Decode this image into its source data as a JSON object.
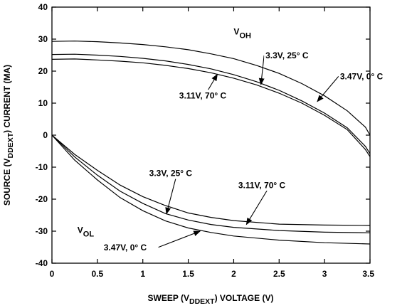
{
  "chart_data": {
    "type": "line",
    "title": "",
    "xlabel": {
      "pre": "SWEEP (V",
      "sub": "DDEXT",
      "post": ") VOLTAGE (V)"
    },
    "ylabel": {
      "pre": "SOURCE (V",
      "sub": "DDEXT",
      "post": ") CURRENT (MA)"
    },
    "xlim": [
      0,
      3.5
    ],
    "ylim": [
      -40,
      40
    ],
    "xticks": [
      "0",
      "0.5",
      "1",
      "1.5",
      "2",
      "2.5",
      "3",
      "3.5"
    ],
    "yticks": [
      "40",
      "30",
      "20",
      "10",
      "0",
      "-10",
      "-20",
      "-30",
      "-40"
    ],
    "grid": false,
    "series": [
      {
        "name": "VOH 3.47V, 0° C",
        "x": [
          0,
          0.25,
          0.5,
          0.75,
          1.0,
          1.25,
          1.5,
          1.75,
          2.0,
          2.25,
          2.5,
          2.75,
          3.0,
          3.25,
          3.45,
          3.5
        ],
        "y": [
          29.3,
          29.4,
          29.2,
          28.8,
          28.3,
          27.6,
          26.7,
          25.4,
          23.9,
          21.8,
          19.3,
          16.1,
          12.3,
          7.6,
          2.5,
          0
        ]
      },
      {
        "name": "VOH 3.3V, 25° C",
        "x": [
          0,
          0.25,
          0.5,
          0.75,
          1.0,
          1.25,
          1.5,
          1.75,
          2.0,
          2.25,
          2.5,
          2.75,
          3.0,
          3.25,
          3.45,
          3.5
        ],
        "y": [
          25.2,
          25.3,
          25.0,
          24.6,
          24.0,
          23.2,
          22.1,
          20.7,
          18.9,
          16.7,
          14.0,
          10.7,
          6.9,
          2.3,
          -3.5,
          -5.8
        ]
      },
      {
        "name": "VOH 3.11V, 70° C",
        "x": [
          0,
          0.25,
          0.5,
          0.75,
          1.0,
          1.25,
          1.5,
          1.75,
          2.0,
          2.25,
          2.5,
          2.75,
          3.0,
          3.25,
          3.45,
          3.5
        ],
        "y": [
          23.7,
          23.8,
          23.5,
          23.1,
          22.6,
          21.8,
          20.8,
          19.5,
          17.8,
          15.7,
          13.1,
          10.0,
          6.2,
          1.7,
          -4.5,
          -6.7
        ]
      },
      {
        "name": "VOL 3.11V, 70° C",
        "x": [
          0,
          0.25,
          0.5,
          0.75,
          1.0,
          1.25,
          1.5,
          1.75,
          2.0,
          2.5,
          3.0,
          3.5
        ],
        "y": [
          0,
          -6.0,
          -11.0,
          -15.6,
          -19.2,
          -22.0,
          -24.3,
          -25.7,
          -26.7,
          -27.8,
          -28.1,
          -28.2
        ]
      },
      {
        "name": "VOL 3.3V, 25° C",
        "x": [
          0,
          0.25,
          0.5,
          0.75,
          1.0,
          1.25,
          1.5,
          1.75,
          2.0,
          2.5,
          3.0,
          3.5
        ],
        "y": [
          0,
          -6.8,
          -12.5,
          -17.5,
          -21.3,
          -24.5,
          -26.5,
          -27.9,
          -28.8,
          -29.8,
          -30.3,
          -30.5
        ]
      },
      {
        "name": "VOL 3.47V, 0° C",
        "x": [
          0,
          0.25,
          0.5,
          0.75,
          1.0,
          1.25,
          1.5,
          1.75,
          2.0,
          2.5,
          3.0,
          3.5
        ],
        "y": [
          0,
          -7.8,
          -14.0,
          -19.5,
          -23.6,
          -26.8,
          -29.0,
          -30.4,
          -31.5,
          -32.8,
          -33.6,
          -34.0
        ]
      }
    ],
    "group_labels": [
      {
        "main": "V",
        "sub": "OH",
        "x": 2.0,
        "y": 31.5
      },
      {
        "main": "V",
        "sub": "OL",
        "x": 0.28,
        "y": -30.5
      }
    ],
    "annotations": [
      {
        "text": "3.3V, 25° C",
        "text_x": 2.35,
        "text_y": 24.0,
        "arrow_to": [
          2.3,
          15.8
        ]
      },
      {
        "text": "3.47V, 0° C",
        "text_x": 3.17,
        "text_y": 17.5,
        "arrow_to": [
          2.92,
          10.5
        ]
      },
      {
        "text": "3.11V, 70° C",
        "text_x": 1.4,
        "text_y": 11.5,
        "arrow_to": [
          1.82,
          19.0
        ]
      },
      {
        "text": "3.3V, 25° C",
        "text_x": 1.07,
        "text_y": -12.8,
        "arrow_to": [
          1.26,
          -24.6
        ]
      },
      {
        "text": "3.11V, 70° C",
        "text_x": 2.05,
        "text_y": -16.5,
        "arrow_to": [
          2.14,
          -27.9
        ]
      },
      {
        "text": "3.47V, 0° C",
        "text_x": 0.57,
        "text_y": -36.0,
        "arrow_to": [
          1.63,
          -30.0
        ]
      }
    ]
  }
}
